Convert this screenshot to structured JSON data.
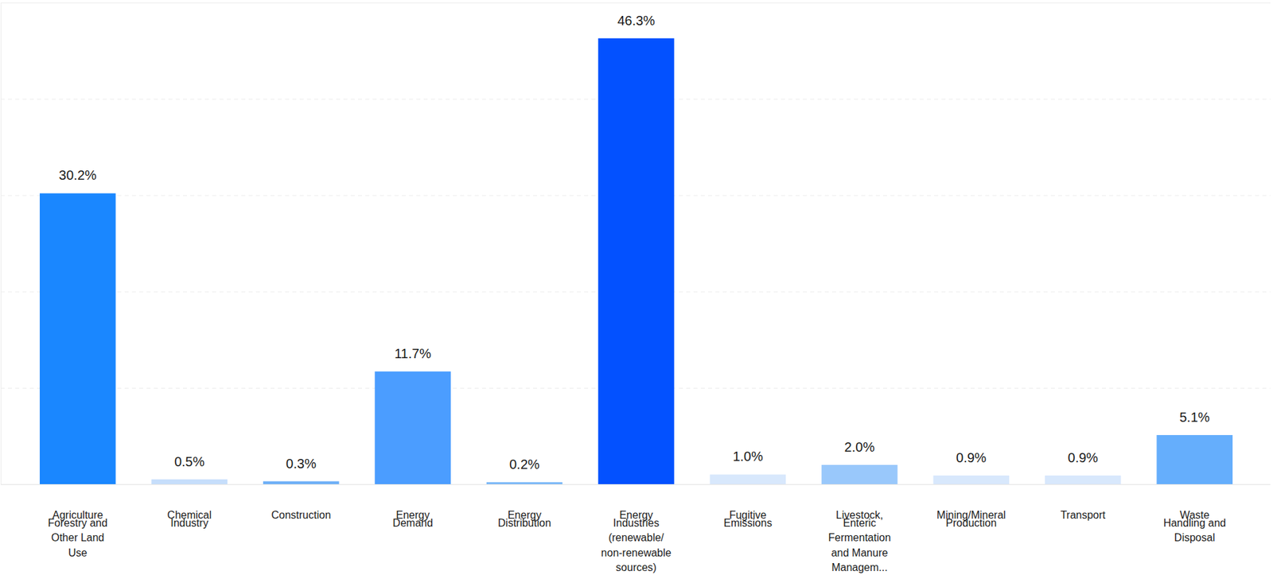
{
  "chart_data": {
    "type": "bar",
    "categories": [
      "Agriculture Forestry and Other Land Use",
      "Chemical Industry",
      "Construction",
      "Energy Demand",
      "Energy Distribution",
      "Energy Industries (renewable/non-renewable sources)",
      "Fugitive Emissions",
      "Livestock, Enteric Fermentation and Manure Managem...",
      "Mining/Mineral Production",
      "Transport",
      "Waste Handling and Disposal"
    ],
    "values": [
      30.2,
      0.5,
      0.3,
      11.7,
      0.2,
      46.3,
      1.0,
      2.0,
      0.9,
      0.9,
      5.1
    ],
    "value_labels": [
      "30.2%",
      "0.5%",
      "0.3%",
      "11.7%",
      "0.2%",
      "46.3%",
      "1.0%",
      "2.0%",
      "0.9%",
      "0.9%",
      "5.1%"
    ],
    "colors": [
      "#1a87ff",
      "#c6defb",
      "#6eb0f7",
      "#4b9dff",
      "#7ab8f8",
      "#0351ff",
      "#d8e8fc",
      "#99c8fb",
      "#d8e8fc",
      "#d8e8fc",
      "#65aefc"
    ],
    "ylim": [
      0,
      50
    ],
    "yticks": [
      0,
      10,
      20,
      30,
      40,
      50
    ],
    "grid": true,
    "data_labels": true,
    "tick_labels": false
  }
}
